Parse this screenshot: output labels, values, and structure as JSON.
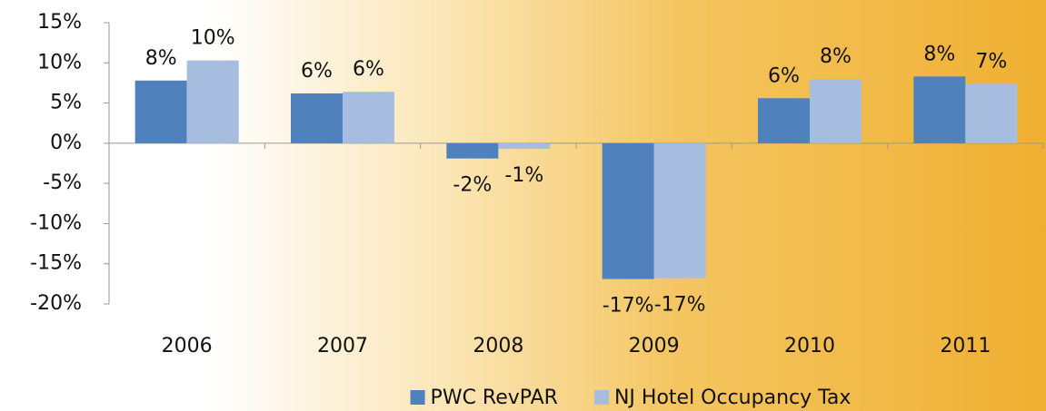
{
  "chart_data": {
    "type": "bar",
    "categories": [
      "2006",
      "2007",
      "2008",
      "2009",
      "2010",
      "2011"
    ],
    "series": [
      {
        "name": "PWC RevPAR",
        "color": "#4f81bd",
        "values": [
          7.8,
          6.2,
          -1.9,
          -16.9,
          5.6,
          8.3
        ],
        "value_labels": [
          "8%",
          "6%",
          "-2%",
          "-17%",
          "6%",
          "8%"
        ]
      },
      {
        "name": "NJ Hotel Occupancy Tax",
        "color": "#a7bde0",
        "values": [
          10.3,
          6.4,
          -0.7,
          -16.8,
          8.0,
          7.4
        ],
        "value_labels": [
          "10%",
          "6%",
          "-1%",
          "-17%",
          "8%",
          "7%"
        ]
      }
    ],
    "ylim": [
      -20,
      15
    ],
    "yticks": [
      {
        "value": -20,
        "label": "-20%"
      },
      {
        "value": -15,
        "label": "-15%"
      },
      {
        "value": -10,
        "label": "-10%"
      },
      {
        "value": -5,
        "label": "-5%"
      },
      {
        "value": 0,
        "label": "0%"
      },
      {
        "value": 5,
        "label": "5%"
      },
      {
        "value": 10,
        "label": "10%"
      },
      {
        "value": 15,
        "label": "15%"
      }
    ],
    "grid": false,
    "legend": "bottom"
  }
}
